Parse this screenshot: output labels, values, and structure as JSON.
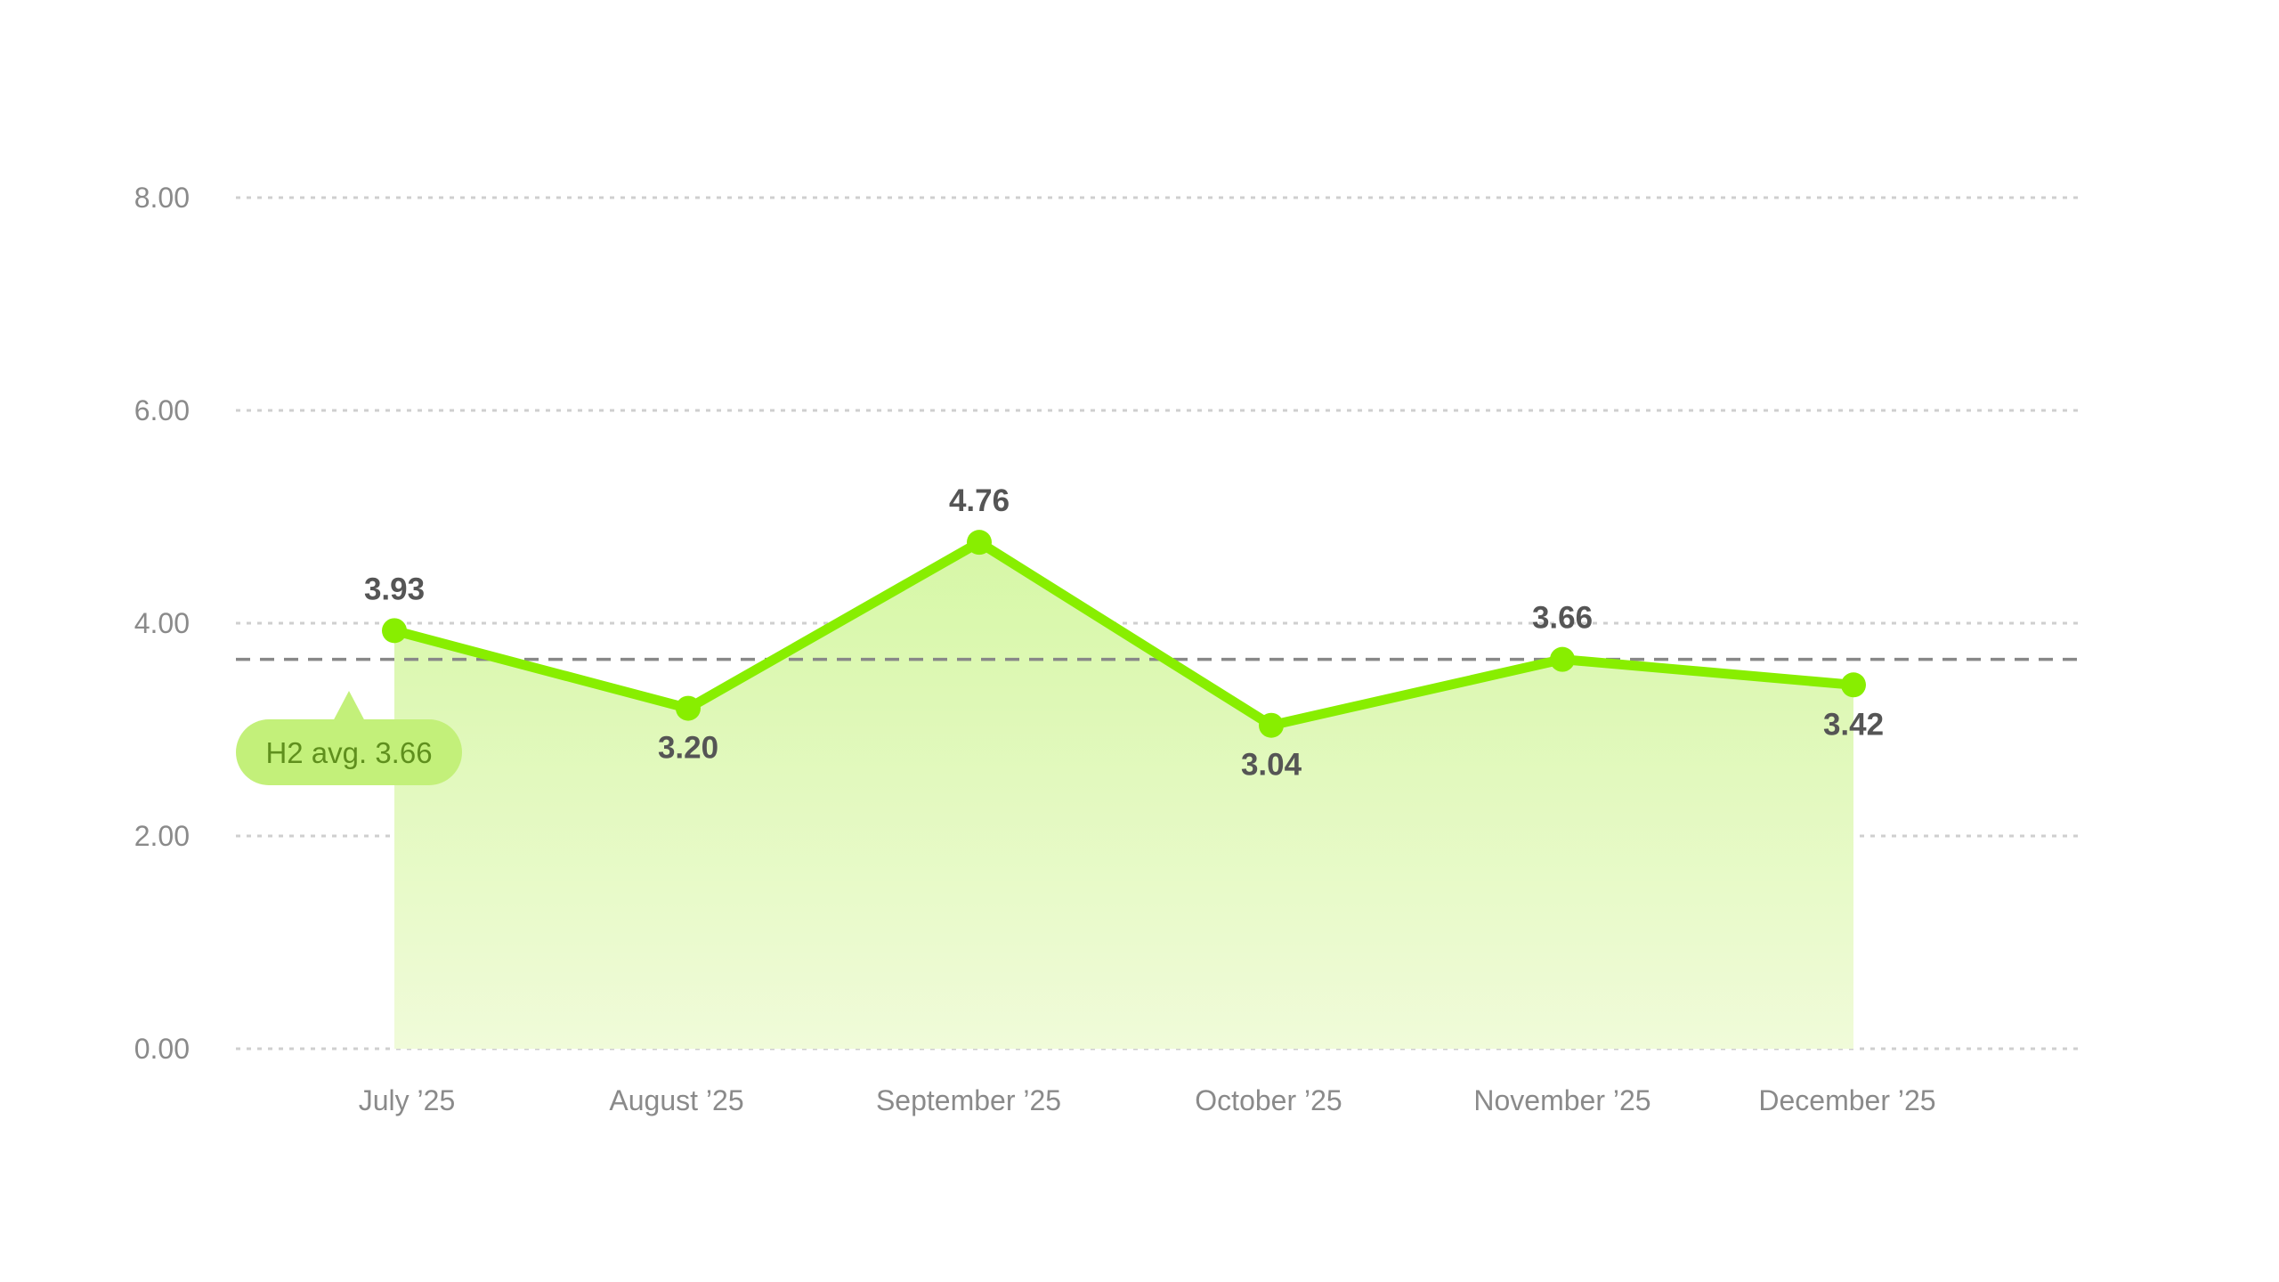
{
  "chart_data": {
    "type": "area",
    "categories": [
      "July '25",
      "August '25",
      "September '25",
      "October '25",
      "November '25",
      "December '25"
    ],
    "series": [
      {
        "values": [
          3.93,
          3.2,
          4.76,
          3.04,
          3.66,
          3.42
        ]
      }
    ],
    "data_labels": [
      "3.93",
      "3.20",
      "4.76",
      "3.04",
      "3.66",
      "3.42"
    ],
    "y_ticks": [
      "0.00",
      "2.00",
      "4.00",
      "6.00",
      "8.00"
    ],
    "ylim": [
      0,
      8
    ],
    "reference_line": {
      "value": 3.66,
      "label": "H2 avg. 3.66"
    },
    "grid": true,
    "colors": {
      "line": "#88ee00",
      "fill_top": "#d6f7a6",
      "fill_bottom": "#f0fbd9",
      "grid": "#cfcfcf",
      "avg_line": "#888888",
      "avg_badge": "#c3f07a",
      "avg_text": "#5f8f1d",
      "label": "#555555",
      "tick": "#8a8a8a"
    }
  }
}
